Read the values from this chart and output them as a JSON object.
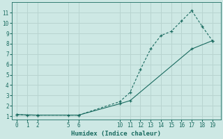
{
  "xlabel": "Humidex (Indice chaleur)",
  "bg_color": "#cde8e4",
  "grid_color": "#b8d4d0",
  "line_color": "#1a6b60",
  "line1_x": [
    0,
    1,
    2,
    5,
    6,
    10,
    11,
    12,
    13,
    14,
    15,
    16,
    17,
    18,
    19
  ],
  "line1_y": [
    1.15,
    1.1,
    1.1,
    1.1,
    1.1,
    2.4,
    3.3,
    5.5,
    7.5,
    8.8,
    9.2,
    10.2,
    11.2,
    9.7,
    8.3
  ],
  "line2_x": [
    0,
    2,
    6,
    10,
    11,
    17,
    19
  ],
  "line2_y": [
    1.15,
    1.1,
    1.1,
    2.2,
    2.5,
    7.5,
    8.3
  ],
  "xlim": [
    -0.5,
    19.8
  ],
  "ylim": [
    0.7,
    12.0
  ],
  "xticks": [
    0,
    1,
    2,
    5,
    6,
    10,
    11,
    12,
    13,
    14,
    15,
    16,
    17,
    18,
    19
  ],
  "yticks": [
    1,
    2,
    3,
    4,
    5,
    6,
    7,
    8,
    9,
    10,
    11
  ]
}
